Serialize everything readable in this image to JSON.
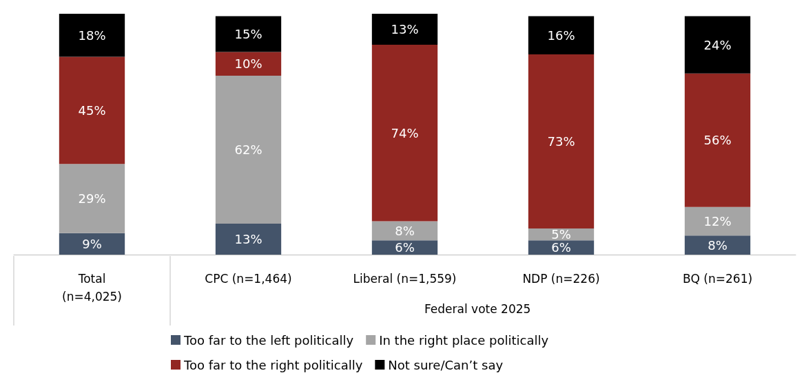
{
  "chart_data": {
    "type": "bar",
    "stacked": true,
    "legend": "bottom",
    "xlabel": "Federal vote 2025",
    "categories": [
      "Total\n(n=4,025)",
      "CPC (n=1,464)",
      "Liberal (n=1,559)",
      "NDP (n=226)",
      "BQ (n=261)"
    ],
    "series": [
      {
        "name": "Too far to the left politically",
        "color": "#44546a",
        "values": [
          9,
          13,
          6,
          6,
          8
        ],
        "value_labels": [
          "9%",
          "13%",
          "6%",
          "6%",
          "8%"
        ]
      },
      {
        "name": "In the right place politically",
        "color": "#a5a5a5",
        "values": [
          29,
          62,
          8,
          5,
          12
        ],
        "value_labels": [
          "29%",
          "62%",
          "8%",
          "5%",
          "12%"
        ]
      },
      {
        "name": "Too far to the right politically",
        "color": "#922722",
        "values": [
          45,
          10,
          74,
          73,
          56
        ],
        "value_labels": [
          "45%",
          "10%",
          "74%",
          "73%",
          "56%"
        ]
      },
      {
        "name": "Not sure/Can’t say",
        "color": "#000000",
        "values": [
          18,
          15,
          13,
          16,
          24
        ],
        "value_labels": [
          "18%",
          "15%",
          "13%",
          "16%",
          "24%"
        ]
      }
    ]
  }
}
